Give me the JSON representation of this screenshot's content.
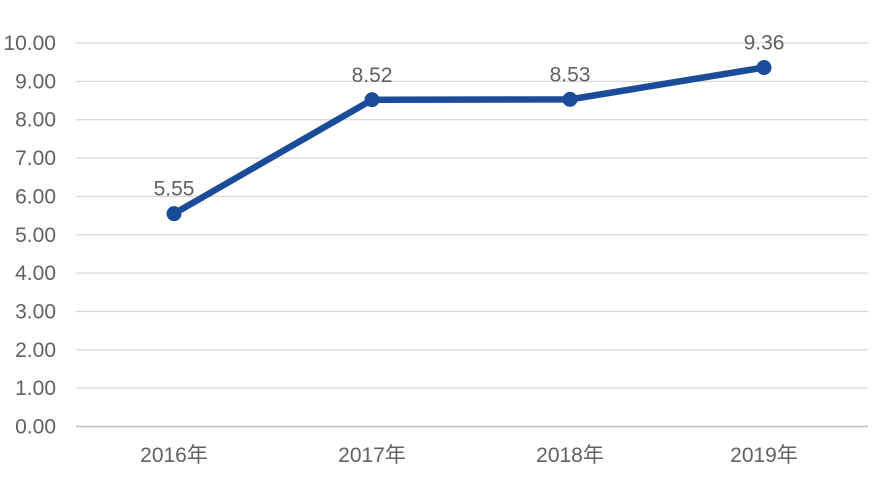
{
  "chart_data": {
    "type": "line",
    "title": "",
    "xlabel": "",
    "ylabel": "",
    "categories": [
      "2016年",
      "2017年",
      "2018年",
      "2019年"
    ],
    "values": [
      5.55,
      8.52,
      8.53,
      9.36
    ],
    "data_labels": [
      "5.55",
      "8.52",
      "8.53",
      "9.36"
    ],
    "series_name": "",
    "y_ticks": [
      "10.00",
      "9.00",
      "8.00",
      "7.00",
      "6.00",
      "5.00",
      "4.00",
      "3.00",
      "2.00",
      "1.00",
      "0.00"
    ],
    "ylim": [
      0,
      10
    ],
    "y_tick_step": 1,
    "grid": true,
    "legend_position": "none",
    "colors": {
      "line": "#1A4C99",
      "marker": "#1A4C99",
      "grid": "#D9D9D9",
      "axis_line": "#BDBDBD",
      "text": "#616161",
      "background": "#FFFFFF"
    }
  }
}
